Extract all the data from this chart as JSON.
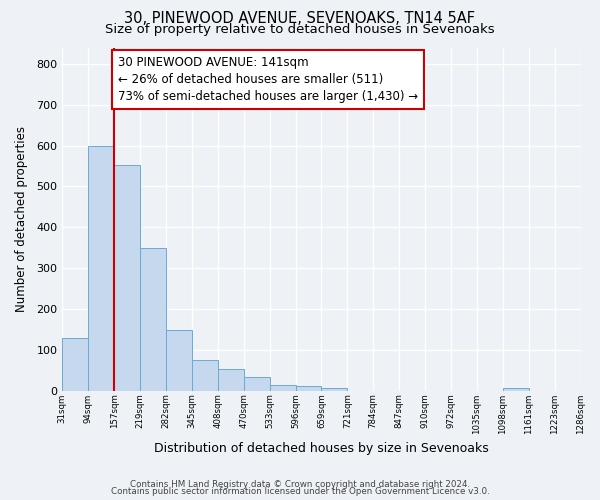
{
  "title": "30, PINEWOOD AVENUE, SEVENOAKS, TN14 5AF",
  "subtitle": "Size of property relative to detached houses in Sevenoaks",
  "xlabel": "Distribution of detached houses by size in Sevenoaks",
  "ylabel": "Number of detached properties",
  "bar_values": [
    128,
    600,
    553,
    350,
    148,
    75,
    52,
    33,
    14,
    10,
    5,
    0,
    0,
    0,
    0,
    0,
    0,
    5,
    0,
    0
  ],
  "bin_labels": [
    "31sqm",
    "94sqm",
    "157sqm",
    "219sqm",
    "282sqm",
    "345sqm",
    "408sqm",
    "470sqm",
    "533sqm",
    "596sqm",
    "659sqm",
    "721sqm",
    "784sqm",
    "847sqm",
    "910sqm",
    "972sqm",
    "1035sqm",
    "1098sqm",
    "1161sqm",
    "1223sqm",
    "1286sqm"
  ],
  "bar_color": "#c5d8ee",
  "bar_edge_color": "#6aaad4",
  "bar_edge_width": 0.7,
  "vline_x": 2,
  "vline_color": "#cc0000",
  "annotation_line1": "30 PINEWOOD AVENUE: 141sqm",
  "annotation_line2": "← 26% of detached houses are smaller (511)",
  "annotation_line3": "73% of semi-detached houses are larger (1,430) →",
  "annotation_box_color": "#ffffff",
  "annotation_box_edge": "#cc0000",
  "annotation_fontsize": 8.5,
  "ylim": [
    0,
    840
  ],
  "yticks": [
    0,
    100,
    200,
    300,
    400,
    500,
    600,
    700,
    800
  ],
  "background_color": "#eef2f7",
  "footer_line1": "Contains HM Land Registry data © Crown copyright and database right 2024.",
  "footer_line2": "Contains public sector information licensed under the Open Government Licence v3.0.",
  "title_fontsize": 10.5,
  "subtitle_fontsize": 9.5,
  "xlabel_fontsize": 9,
  "ylabel_fontsize": 8.5
}
